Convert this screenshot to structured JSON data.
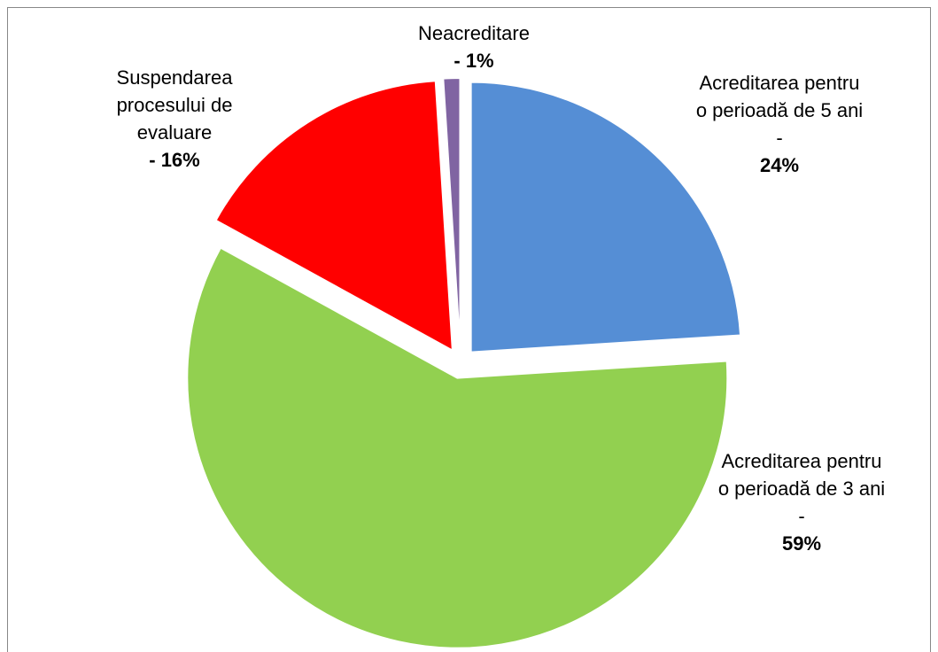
{
  "chart_data": {
    "type": "pie",
    "categories": [
      "Acreditarea pentru o perioadă de 5 ani -",
      "Acreditarea pentru o perioadă de 3 ani -",
      "Suspendarea procesului de evaluare",
      "Neacreditare"
    ],
    "values": [
      24,
      59,
      16,
      1
    ],
    "value_labels": [
      "24%",
      "59%",
      "- 16%",
      "- 1%"
    ],
    "colors": [
      "#558ed5",
      "#92d050",
      "#ff0000",
      "#8064a2"
    ],
    "exploded": true
  }
}
